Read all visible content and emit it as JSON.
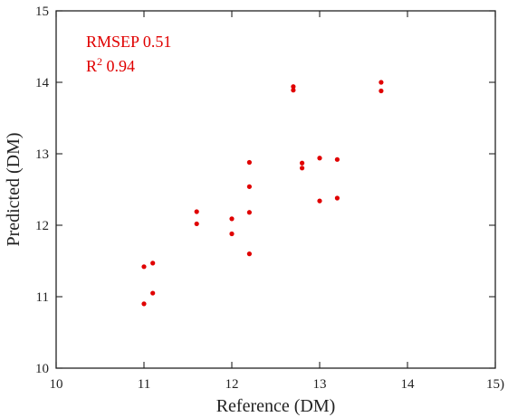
{
  "chart_data": {
    "type": "scatter",
    "xlabel": "Reference (DM)",
    "ylabel": "Predicted (DM)",
    "xlim": [
      10,
      15
    ],
    "ylim": [
      10,
      15
    ],
    "xticks": [
      10,
      11,
      12,
      13,
      14,
      15
    ],
    "yticks": [
      10,
      11,
      12,
      13,
      14,
      15
    ],
    "xtick_labels": [
      "10",
      "11",
      "12",
      "13",
      "14",
      "15)"
    ],
    "ytick_labels": [
      "10",
      "11",
      "12",
      "13",
      "14",
      "15"
    ],
    "grid": false,
    "annotations": {
      "rmsep": "RMSEP 0.51",
      "r2_prefix": "R",
      "r2_sup": "2",
      "r2_value": " 0.94"
    },
    "point_color": "#e00000",
    "series": [
      {
        "x": [
          11.0,
          11.0,
          11.1,
          11.1,
          11.6,
          11.6,
          12.0,
          12.0,
          12.2,
          12.2,
          12.2,
          12.2,
          12.7,
          12.7,
          12.8,
          12.8,
          13.0,
          13.0,
          13.2,
          13.2,
          13.7,
          13.7
        ],
        "y": [
          10.9,
          11.42,
          11.05,
          11.47,
          12.02,
          12.19,
          11.88,
          12.09,
          11.6,
          12.18,
          12.54,
          12.88,
          13.89,
          13.94,
          12.8,
          12.87,
          12.34,
          12.94,
          12.38,
          12.92,
          13.88,
          14.0
        ]
      }
    ]
  }
}
